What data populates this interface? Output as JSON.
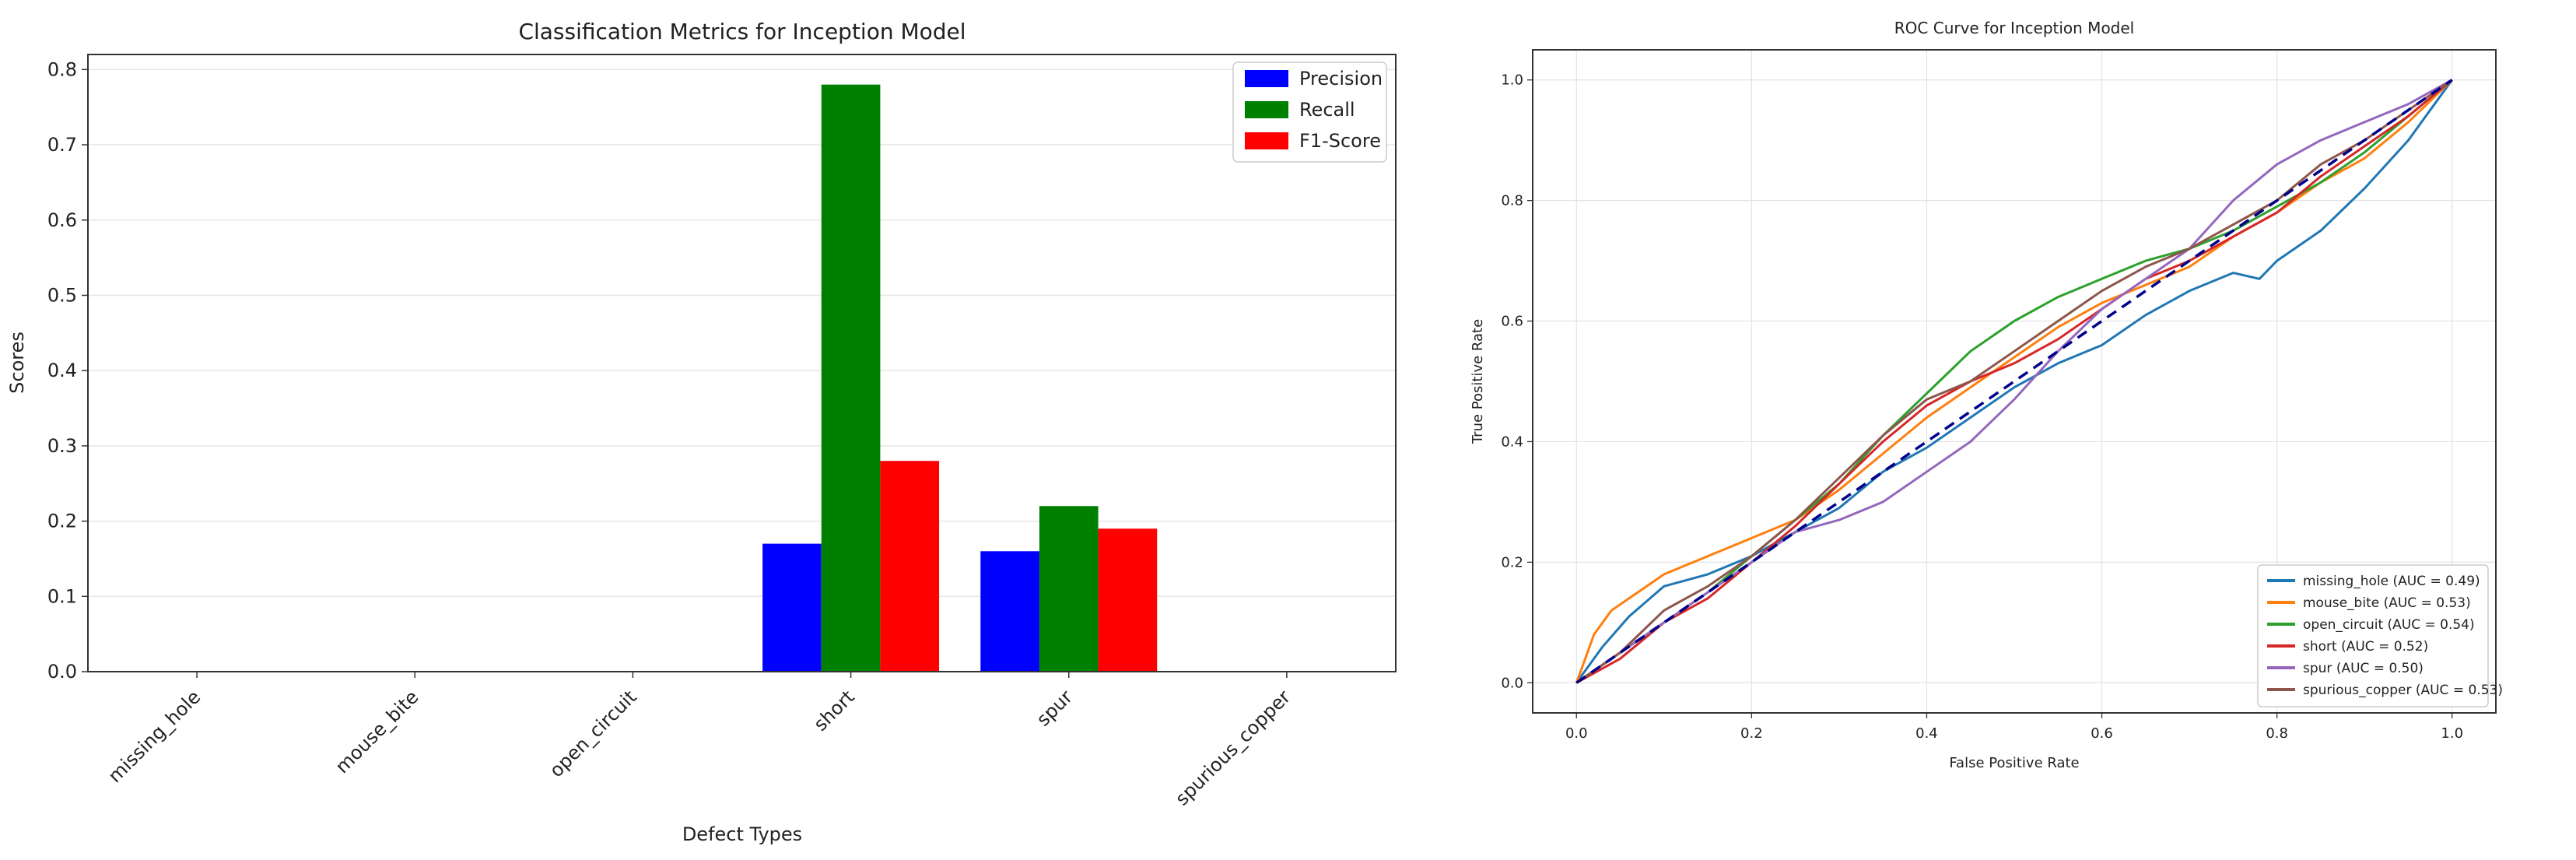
{
  "chart_data": [
    {
      "type": "bar",
      "title": "Classification Metrics for Inception Model",
      "xlabel": "Defect Types",
      "ylabel": "Scores",
      "ylim": [
        0,
        0.82
      ],
      "yticks": [
        "0.0",
        "0.1",
        "0.2",
        "0.3",
        "0.4",
        "0.5",
        "0.6",
        "0.7",
        "0.8"
      ],
      "categories": [
        "missing_hole",
        "mouse_bite",
        "open_circuit",
        "short",
        "spur",
        "spurious_copper"
      ],
      "series": [
        {
          "name": "Precision",
          "color": "#0000ff",
          "values": [
            0,
            0,
            0,
            0.17,
            0.16,
            0
          ]
        },
        {
          "name": "Recall",
          "color": "#008000",
          "values": [
            0,
            0,
            0,
            0.78,
            0.22,
            0
          ]
        },
        {
          "name": "F1-Score",
          "color": "#ff0000",
          "values": [
            0,
            0,
            0,
            0.28,
            0.19,
            0
          ]
        }
      ],
      "legend": "top-right",
      "grid": true
    },
    {
      "type": "line",
      "title": "ROC Curve for Inception Model",
      "xlabel": "False Positive Rate",
      "ylabel": "True Positive Rate",
      "xlim": [
        -0.05,
        1.05
      ],
      "ylim": [
        -0.05,
        1.05
      ],
      "xticks": [
        "0.0",
        "0.2",
        "0.4",
        "0.6",
        "0.8",
        "1.0"
      ],
      "yticks": [
        "0.0",
        "0.2",
        "0.4",
        "0.6",
        "0.8",
        "1.0"
      ],
      "legend": "bottom-right",
      "grid": true,
      "chance_line": {
        "color": "#00008b",
        "points": [
          [
            0,
            0
          ],
          [
            1,
            1
          ]
        ]
      },
      "series": [
        {
          "name": "missing_hole (AUC = 0.49)",
          "color": "#1f77b4",
          "points": [
            [
              0,
              0
            ],
            [
              0.03,
              0.06
            ],
            [
              0.06,
              0.11
            ],
            [
              0.1,
              0.16
            ],
            [
              0.15,
              0.18
            ],
            [
              0.2,
              0.21
            ],
            [
              0.25,
              0.25
            ],
            [
              0.3,
              0.29
            ],
            [
              0.35,
              0.35
            ],
            [
              0.4,
              0.39
            ],
            [
              0.45,
              0.44
            ],
            [
              0.5,
              0.49
            ],
            [
              0.55,
              0.53
            ],
            [
              0.6,
              0.56
            ],
            [
              0.65,
              0.61
            ],
            [
              0.7,
              0.65
            ],
            [
              0.75,
              0.68
            ],
            [
              0.78,
              0.67
            ],
            [
              0.8,
              0.7
            ],
            [
              0.85,
              0.75
            ],
            [
              0.9,
              0.82
            ],
            [
              0.95,
              0.9
            ],
            [
              1,
              1
            ]
          ]
        },
        {
          "name": "mouse_bite (AUC = 0.53)",
          "color": "#ff7f0e",
          "points": [
            [
              0,
              0
            ],
            [
              0.02,
              0.08
            ],
            [
              0.04,
              0.12
            ],
            [
              0.07,
              0.15
            ],
            [
              0.1,
              0.18
            ],
            [
              0.15,
              0.21
            ],
            [
              0.2,
              0.24
            ],
            [
              0.25,
              0.27
            ],
            [
              0.3,
              0.32
            ],
            [
              0.35,
              0.38
            ],
            [
              0.4,
              0.44
            ],
            [
              0.45,
              0.49
            ],
            [
              0.5,
              0.54
            ],
            [
              0.55,
              0.59
            ],
            [
              0.6,
              0.63
            ],
            [
              0.65,
              0.66
            ],
            [
              0.7,
              0.69
            ],
            [
              0.75,
              0.74
            ],
            [
              0.8,
              0.78
            ],
            [
              0.85,
              0.83
            ],
            [
              0.9,
              0.87
            ],
            [
              0.95,
              0.93
            ],
            [
              1,
              1
            ]
          ]
        },
        {
          "name": "open_circuit (AUC = 0.54)",
          "color": "#2ca02c",
          "points": [
            [
              0,
              0
            ],
            [
              0.05,
              0.05
            ],
            [
              0.1,
              0.1
            ],
            [
              0.15,
              0.15
            ],
            [
              0.2,
              0.21
            ],
            [
              0.25,
              0.27
            ],
            [
              0.3,
              0.33
            ],
            [
              0.35,
              0.41
            ],
            [
              0.4,
              0.48
            ],
            [
              0.45,
              0.55
            ],
            [
              0.5,
              0.6
            ],
            [
              0.55,
              0.64
            ],
            [
              0.6,
              0.67
            ],
            [
              0.65,
              0.7
            ],
            [
              0.7,
              0.72
            ],
            [
              0.75,
              0.75
            ],
            [
              0.8,
              0.79
            ],
            [
              0.85,
              0.83
            ],
            [
              0.9,
              0.88
            ],
            [
              0.95,
              0.94
            ],
            [
              1,
              1
            ]
          ]
        },
        {
          "name": "short (AUC = 0.52)",
          "color": "#d62728",
          "points": [
            [
              0,
              0
            ],
            [
              0.05,
              0.04
            ],
            [
              0.1,
              0.1
            ],
            [
              0.15,
              0.14
            ],
            [
              0.2,
              0.2
            ],
            [
              0.25,
              0.26
            ],
            [
              0.3,
              0.33
            ],
            [
              0.35,
              0.4
            ],
            [
              0.4,
              0.46
            ],
            [
              0.45,
              0.5
            ],
            [
              0.5,
              0.53
            ],
            [
              0.55,
              0.57
            ],
            [
              0.6,
              0.62
            ],
            [
              0.65,
              0.67
            ],
            [
              0.7,
              0.7
            ],
            [
              0.75,
              0.74
            ],
            [
              0.8,
              0.78
            ],
            [
              0.85,
              0.84
            ],
            [
              0.9,
              0.89
            ],
            [
              0.95,
              0.94
            ],
            [
              1,
              1
            ]
          ]
        },
        {
          "name": "spur (AUC = 0.50)",
          "color": "#9467bd",
          "points": [
            [
              0,
              0
            ],
            [
              0.05,
              0.05
            ],
            [
              0.1,
              0.1
            ],
            [
              0.15,
              0.15
            ],
            [
              0.2,
              0.2
            ],
            [
              0.25,
              0.25
            ],
            [
              0.3,
              0.27
            ],
            [
              0.35,
              0.3
            ],
            [
              0.4,
              0.35
            ],
            [
              0.45,
              0.4
            ],
            [
              0.5,
              0.47
            ],
            [
              0.55,
              0.55
            ],
            [
              0.6,
              0.62
            ],
            [
              0.65,
              0.67
            ],
            [
              0.7,
              0.72
            ],
            [
              0.75,
              0.8
            ],
            [
              0.8,
              0.86
            ],
            [
              0.85,
              0.9
            ],
            [
              0.9,
              0.93
            ],
            [
              0.95,
              0.96
            ],
            [
              1,
              1
            ]
          ]
        },
        {
          "name": "spurious_copper (AUC = 0.53)",
          "color": "#8c564b",
          "points": [
            [
              0,
              0
            ],
            [
              0.05,
              0.05
            ],
            [
              0.1,
              0.12
            ],
            [
              0.15,
              0.16
            ],
            [
              0.2,
              0.21
            ],
            [
              0.25,
              0.27
            ],
            [
              0.3,
              0.34
            ],
            [
              0.35,
              0.41
            ],
            [
              0.4,
              0.47
            ],
            [
              0.45,
              0.5
            ],
            [
              0.5,
              0.55
            ],
            [
              0.55,
              0.6
            ],
            [
              0.6,
              0.65
            ],
            [
              0.65,
              0.69
            ],
            [
              0.7,
              0.72
            ],
            [
              0.75,
              0.76
            ],
            [
              0.8,
              0.8
            ],
            [
              0.85,
              0.86
            ],
            [
              0.9,
              0.9
            ],
            [
              0.95,
              0.95
            ],
            [
              1,
              1
            ]
          ]
        }
      ]
    }
  ]
}
